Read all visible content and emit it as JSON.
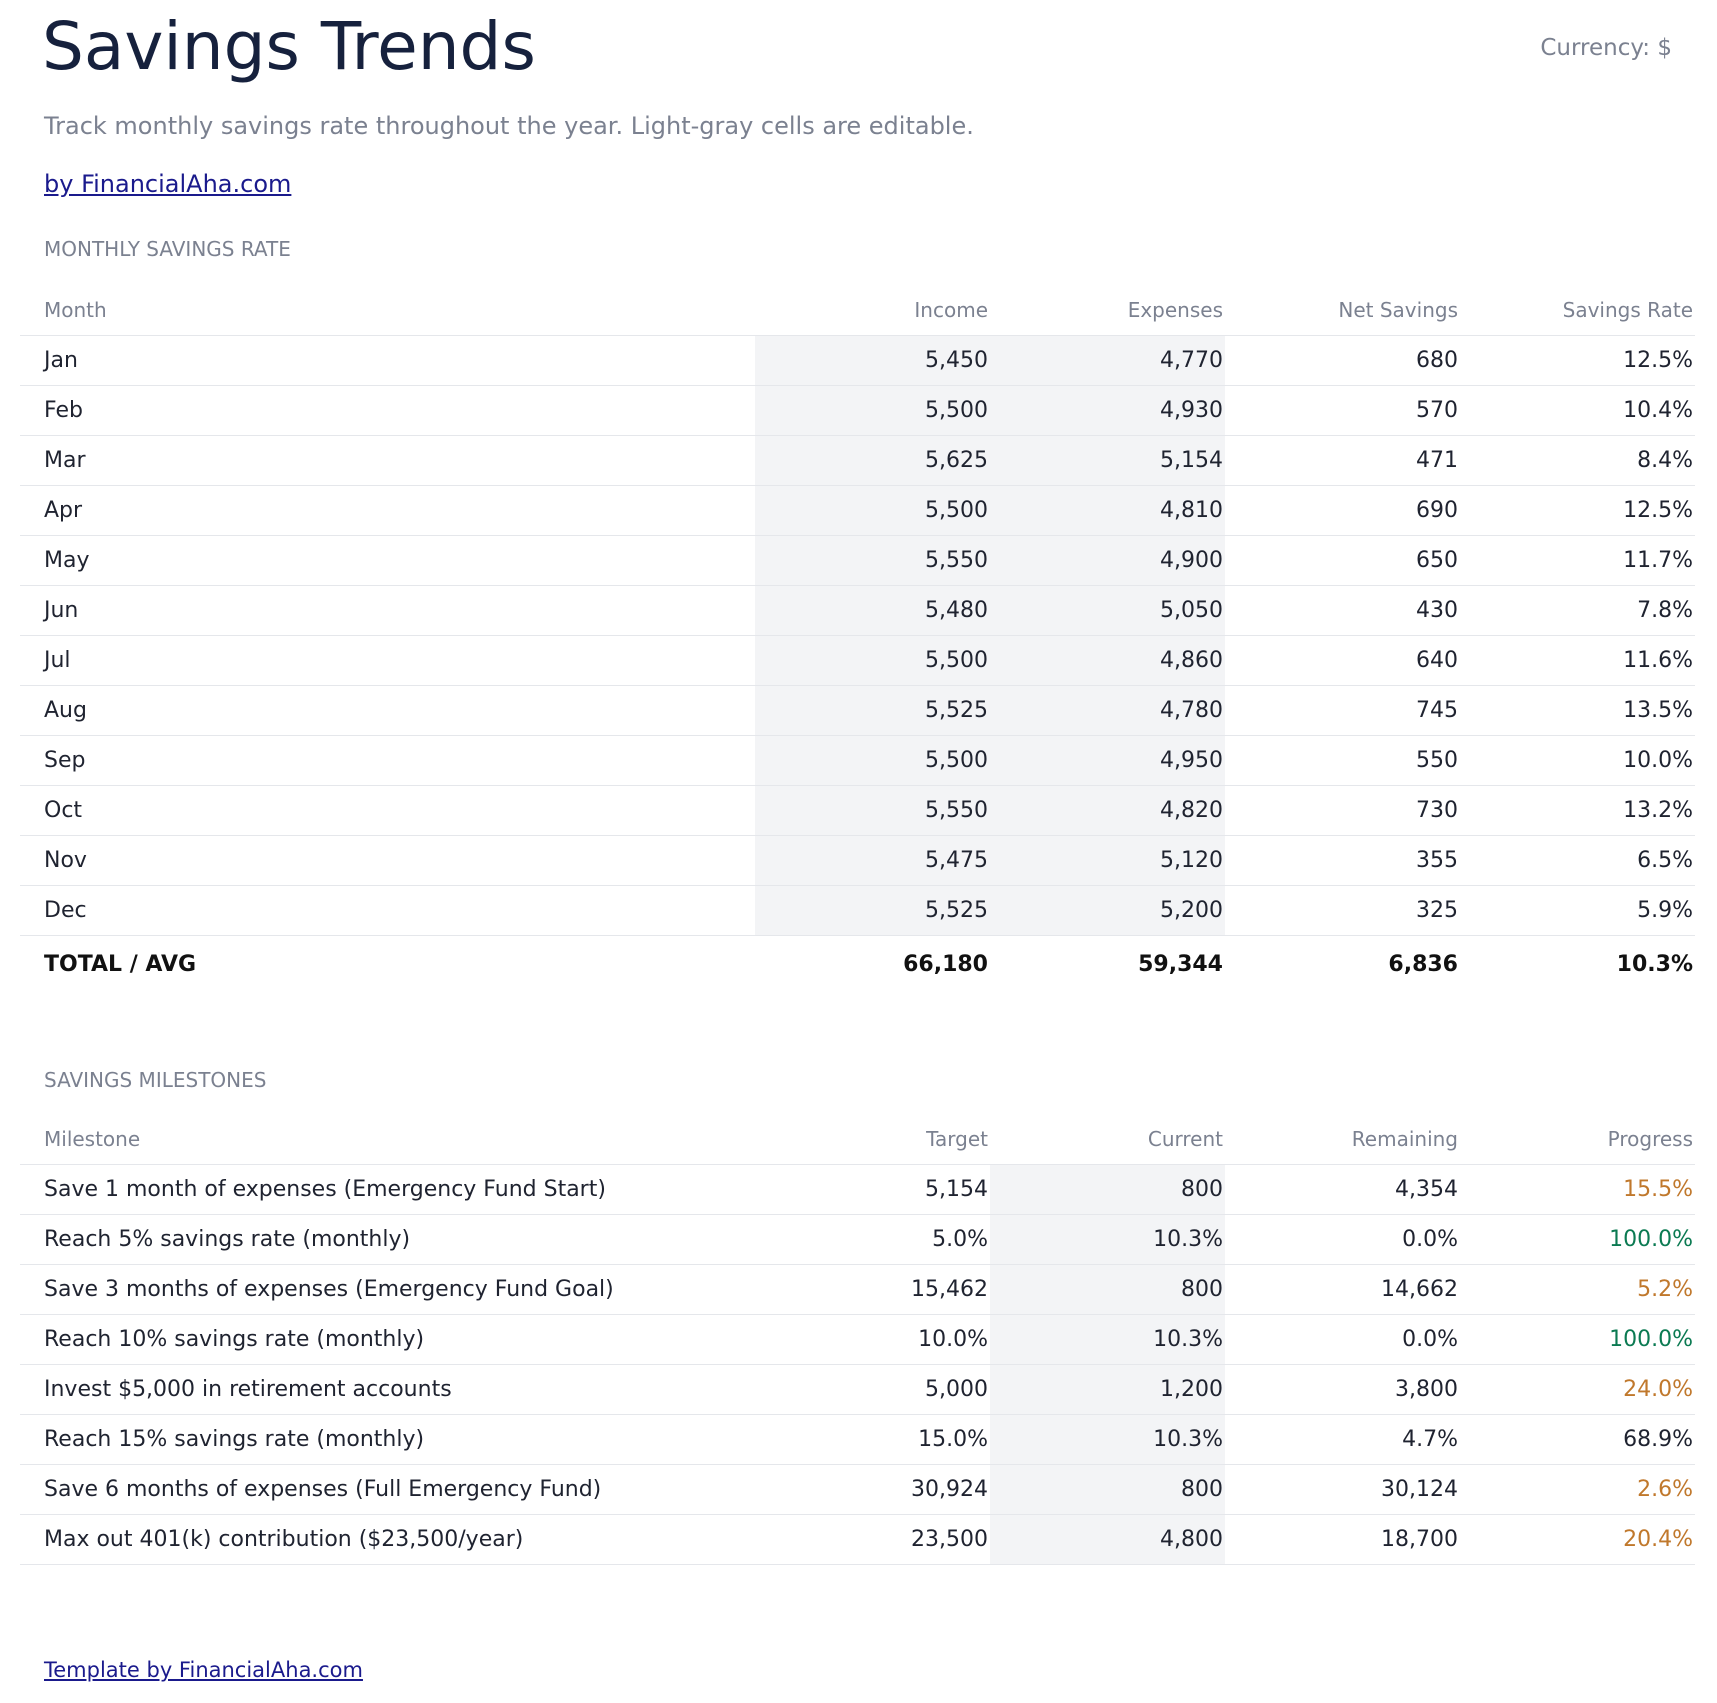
{
  "header": {
    "title": "Savings Trends",
    "currency": "Currency: $",
    "subtitle": "Track monthly savings rate throughout the year. Light-gray cells are editable.",
    "link": "by FinancialAha.com"
  },
  "monthly": {
    "label": "MONTHLY SAVINGS RATE",
    "columns": [
      "Month",
      "Income",
      "Expenses",
      "Net Savings",
      "Savings Rate"
    ],
    "editable_columns": [
      1,
      2
    ],
    "rows": [
      [
        "Jan",
        "5,450",
        "4,770",
        "680",
        "12.5%"
      ],
      [
        "Feb",
        "5,500",
        "4,930",
        "570",
        "10.4%"
      ],
      [
        "Mar",
        "5,625",
        "5,154",
        "471",
        "8.4%"
      ],
      [
        "Apr",
        "5,500",
        "4,810",
        "690",
        "12.5%"
      ],
      [
        "May",
        "5,550",
        "4,900",
        "650",
        "11.7%"
      ],
      [
        "Jun",
        "5,480",
        "5,050",
        "430",
        "7.8%"
      ],
      [
        "Jul",
        "5,500",
        "4,860",
        "640",
        "11.6%"
      ],
      [
        "Aug",
        "5,525",
        "4,780",
        "745",
        "13.5%"
      ],
      [
        "Sep",
        "5,500",
        "4,950",
        "550",
        "10.0%"
      ],
      [
        "Oct",
        "5,550",
        "4,820",
        "730",
        "13.2%"
      ],
      [
        "Nov",
        "5,475",
        "5,120",
        "355",
        "6.5%"
      ],
      [
        "Dec",
        "5,525",
        "5,200",
        "325",
        "5.9%"
      ]
    ],
    "total": [
      "TOTAL / AVG",
      "66,180",
      "59,344",
      "6,836",
      "10.3%"
    ]
  },
  "milestones": {
    "label": "SAVINGS MILESTONES",
    "columns": [
      "Milestone",
      "Target",
      "Current",
      "Remaining",
      "Progress"
    ],
    "editable_columns": [
      2
    ],
    "rows": [
      [
        "Save 1 month of expenses (Emergency Fund Start)",
        "5,154",
        "800",
        "4,354",
        "15.5%"
      ],
      [
        "Reach 5% savings rate (monthly)",
        "5.0%",
        "10.3%",
        "0.0%",
        "100.0%"
      ],
      [
        "Save 3 months of expenses (Emergency Fund Goal)",
        "15,462",
        "800",
        "14,662",
        "5.2%"
      ],
      [
        "Reach 10% savings rate (monthly)",
        "10.0%",
        "10.3%",
        "0.0%",
        "100.0%"
      ],
      [
        "Invest $5,000 in retirement accounts",
        "5,000",
        "1,200",
        "3,800",
        "24.0%"
      ],
      [
        "Reach 15% savings rate (monthly)",
        "15.0%",
        "10.3%",
        "4.7%",
        "68.9%"
      ],
      [
        "Save 6 months of expenses (Full Emergency Fund)",
        "30,924",
        "800",
        "30,124",
        "2.6%"
      ],
      [
        "Max out 401(k) contribution ($23,500/year)",
        "23,500",
        "4,800",
        "18,700",
        "20.4%"
      ]
    ],
    "progress_colors": [
      "#c0782c",
      "#0b7a52",
      "#c0782c",
      "#0b7a52",
      "#c0782c",
      "#1f2330",
      "#c0782c",
      "#c0782c"
    ]
  },
  "footer": {
    "link": "Template by FinancialAha.com"
  }
}
